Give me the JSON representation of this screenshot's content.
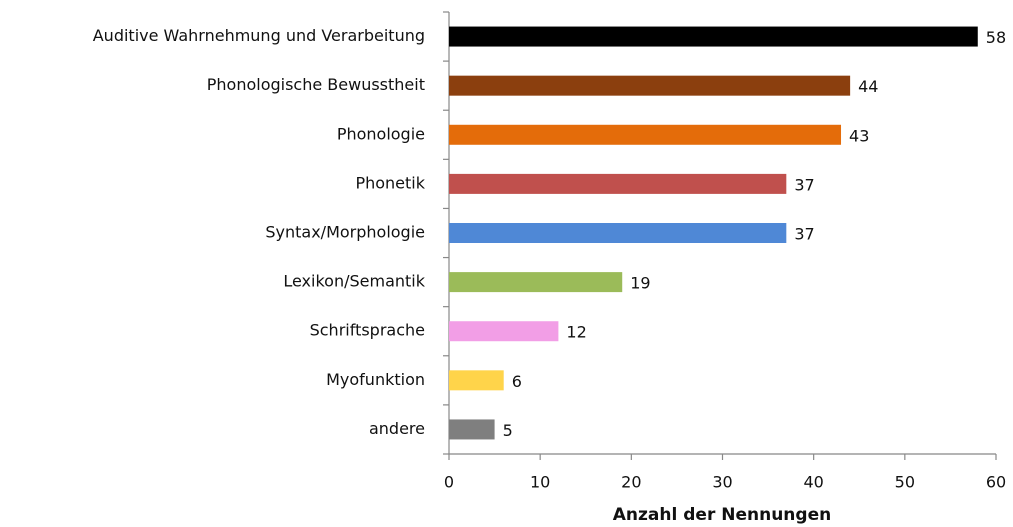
{
  "chart_data": {
    "type": "bar",
    "orientation": "horizontal",
    "x_label": "Anzahl der Nennungen",
    "categories": [
      "Auditive Wahrnehmung und Verarbeitung",
      "Phonologische Bewusstheit",
      "Phonologie",
      "Phonetik",
      "Syntax/Morphologie",
      "Lexikon/Semantik",
      "Schriftsprache",
      "Myofunktion",
      "andere"
    ],
    "values": [
      58,
      44,
      43,
      37,
      37,
      19,
      12,
      6,
      5
    ],
    "colors": [
      "#000000",
      "#8b3f0e",
      "#e46c0a",
      "#c0504d",
      "#4f88d6",
      "#9bbb59",
      "#f29ee6",
      "#ffd44a",
      "#7f7f7f"
    ],
    "xlim": [
      0,
      60
    ],
    "xticks": [
      0,
      10,
      20,
      30,
      40,
      50,
      60
    ],
    "grid": false
  }
}
